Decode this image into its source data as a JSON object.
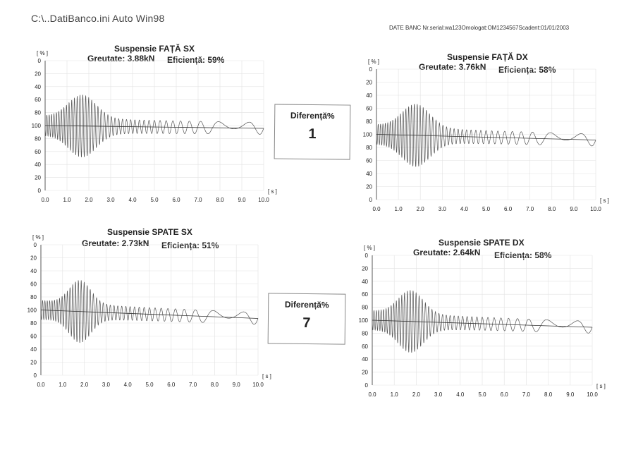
{
  "header": {
    "path": "C:\\..DatiBanco.ini Auto Win98",
    "bank_info": "DATE BANC  Nr.serial:wa123Omologat:OM1234567Scadent:01/01/2003"
  },
  "panels": [
    {
      "title": "Suspensie FAȚĂ SX",
      "weight_label": "Greutate: 3.88kN",
      "efficiency_label": "Eficiență: 59%",
      "y_unit": "[ % ]",
      "x_unit": "[ s ]",
      "y_ticks": [
        "0",
        "20",
        "40",
        "60",
        "80",
        "100",
        "80",
        "60",
        "40",
        "20",
        "0"
      ],
      "x_ticks": [
        "0.0",
        "1.0",
        "2.0",
        "3.0",
        "4.0",
        "5.0",
        "6.0",
        "7.0",
        "8.0",
        "9.0",
        "10.0"
      ]
    },
    {
      "title": "Suspensie FAȚĂ DX",
      "weight_label": "Greutate: 3.76kN",
      "efficiency_label": "Eficiența: 58%",
      "y_unit": "[ % ]",
      "x_unit": "[ s ]",
      "y_ticks": [
        "0",
        "20",
        "40",
        "60",
        "80",
        "100",
        "80",
        "60",
        "40",
        "20",
        "0"
      ],
      "x_ticks": [
        "0.0",
        "1.0",
        "2.0",
        "3.0",
        "4.0",
        "5.0",
        "6.0",
        "7.0",
        "8.0",
        "9.0",
        "10.0"
      ]
    },
    {
      "title": "Suspensie SPATE SX",
      "weight_label": "Greutate: 2.73kN",
      "efficiency_label": "Eficiența: 51%",
      "y_unit": "[ % ]",
      "x_unit": "[ s ]",
      "y_ticks": [
        "0",
        "20",
        "40",
        "60",
        "80",
        "100",
        "80",
        "60",
        "40",
        "20",
        "0"
      ],
      "x_ticks": [
        "0.0",
        "1.0",
        "2.0",
        "3.0",
        "4.0",
        "5.0",
        "6.0",
        "7.0",
        "8.0",
        "9.0",
        "10.0"
      ]
    },
    {
      "title": "Suspensie SPATE DX",
      "weight_label": "Greutate: 2.64kN",
      "efficiency_label": "Eficiența: 58%",
      "y_unit": "[ % ]",
      "x_unit": "[ s ]",
      "y_ticks": [
        "0",
        "20",
        "40",
        "60",
        "80",
        "100",
        "80",
        "60",
        "40",
        "20",
        "0"
      ],
      "x_ticks": [
        "0.0",
        "1.0",
        "2.0",
        "3.0",
        "4.0",
        "5.0",
        "6.0",
        "7.0",
        "8.0",
        "9.0",
        "10.0"
      ]
    }
  ],
  "differences": [
    {
      "label": "Diferență%",
      "value": "1"
    },
    {
      "label": "Diferență%",
      "value": "7"
    }
  ],
  "colors": {
    "signal": "#555555",
    "axis": "#333333",
    "grid": "#e2e2e2"
  }
}
